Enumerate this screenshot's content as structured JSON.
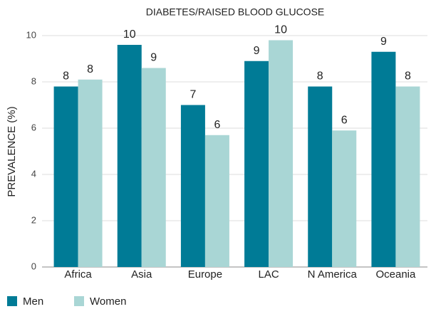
{
  "chart_data": {
    "type": "bar",
    "title": "DIABETES/RAISED BLOOD GLUCOSE",
    "y_label": "PREVALENCE (%)",
    "categories": [
      "Africa",
      "Asia",
      "Europe",
      "LAC",
      "N America",
      "Oceania"
    ],
    "series": [
      {
        "name": "Men",
        "color": "#007b96",
        "values": [
          7.8,
          9.6,
          7.0,
          8.9,
          7.8,
          9.3
        ],
        "value_labels": [
          "8",
          "10",
          "7",
          "9",
          "8",
          "9"
        ]
      },
      {
        "name": "Women",
        "color": "#a9d6d5",
        "values": [
          8.1,
          8.6,
          5.7,
          9.8,
          5.9,
          7.8
        ],
        "value_labels": [
          "8",
          "9",
          "6",
          "10",
          "6",
          "8"
        ]
      }
    ],
    "ylim": [
      0,
      10
    ],
    "yticks": [
      0,
      2,
      4,
      6,
      8,
      10
    ],
    "grid": true,
    "legend": "bottom-left"
  }
}
